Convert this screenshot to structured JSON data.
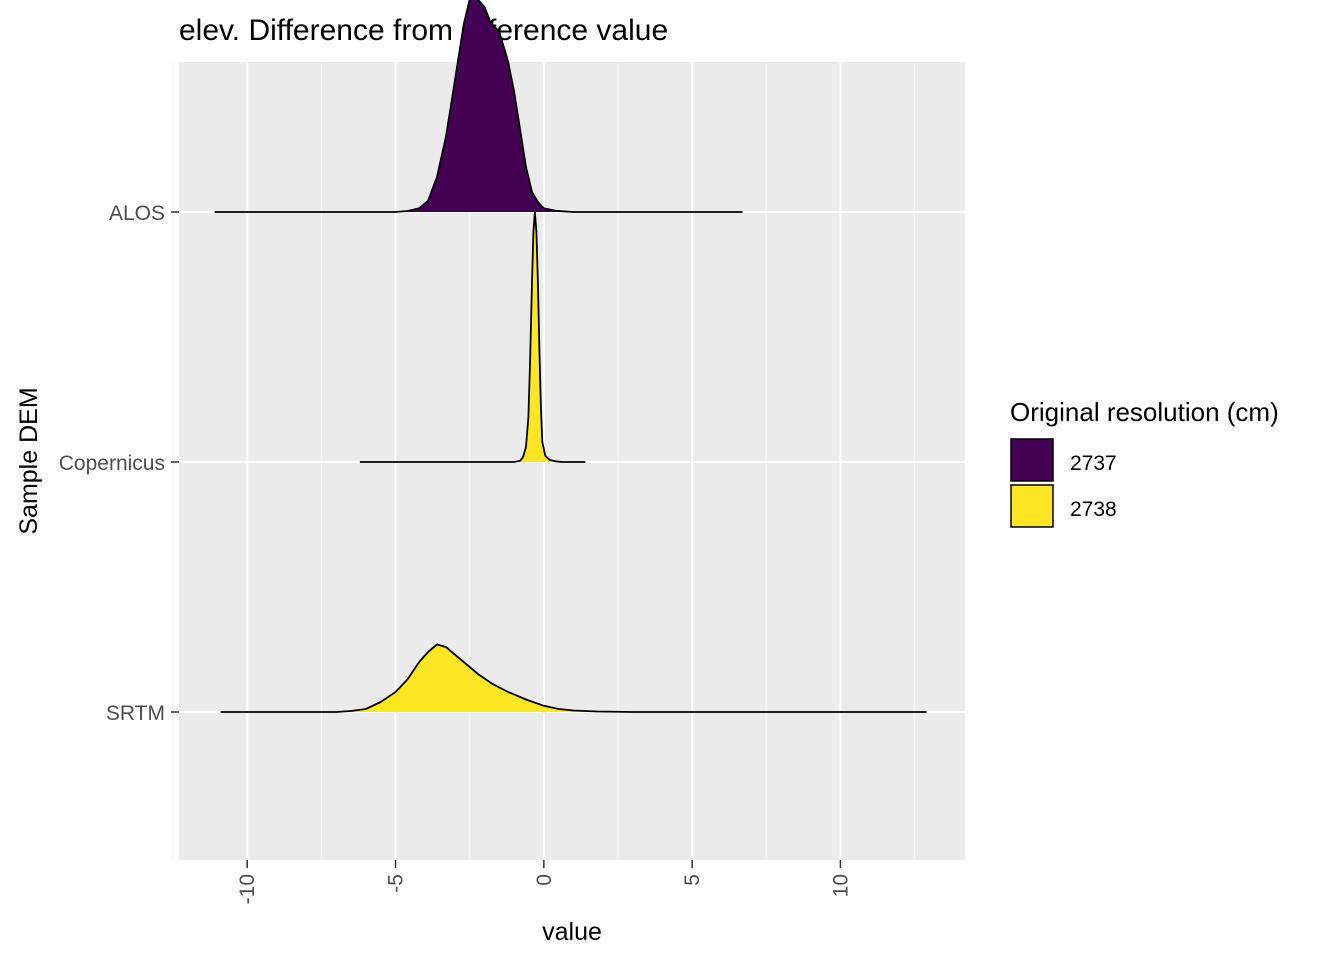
{
  "chart_data": {
    "type": "ridgeline",
    "title": "elev. Difference from reference value",
    "xlabel": "value",
    "ylabel": "Sample DEM",
    "xlim": [
      -12.3,
      14.2
    ],
    "x_ticks": [
      -10,
      -5,
      0,
      5,
      10
    ],
    "x_tick_labels": [
      "-10",
      "-5",
      "0",
      "5",
      "10"
    ],
    "x_minor_ticks": [
      -12.5,
      -7.5,
      -2.5,
      2.5,
      7.5,
      12.5
    ],
    "categories": [
      "ALOS",
      "Copernicus",
      "SRTM"
    ],
    "grid": true,
    "legend": {
      "title": "Original resolution (cm)",
      "position": "right",
      "entries": [
        {
          "label": "2737",
          "color": "#440154"
        },
        {
          "label": "2738",
          "color": "#FDE725"
        }
      ]
    },
    "series": [
      {
        "name": "ALOS",
        "group": "2737",
        "color": "#440154",
        "range": [
          -11.1,
          6.7
        ],
        "density": [
          [
            -11.1,
            0
          ],
          [
            -5.0,
            0
          ],
          [
            -4.6,
            0.004
          ],
          [
            -4.2,
            0.015
          ],
          [
            -3.9,
            0.045
          ],
          [
            -3.6,
            0.14
          ],
          [
            -3.3,
            0.3
          ],
          [
            -3.1,
            0.45
          ],
          [
            -2.9,
            0.6
          ],
          [
            -2.7,
            0.75
          ],
          [
            -2.5,
            0.85
          ],
          [
            -2.3,
            0.86
          ],
          [
            -2.0,
            0.82
          ],
          [
            -1.8,
            0.76
          ],
          [
            -1.5,
            0.72
          ],
          [
            -1.2,
            0.6
          ],
          [
            -1.0,
            0.48
          ],
          [
            -0.8,
            0.33
          ],
          [
            -0.6,
            0.18
          ],
          [
            -0.4,
            0.08
          ],
          [
            -0.2,
            0.04
          ],
          [
            0.0,
            0.015
          ],
          [
            0.4,
            0.005
          ],
          [
            1.0,
            0
          ],
          [
            6.7,
            0
          ]
        ]
      },
      {
        "name": "Copernicus",
        "group": "2738",
        "color": "#FDE725",
        "range": [
          -6.2,
          1.4
        ],
        "density": [
          [
            -6.2,
            0
          ],
          [
            -1.0,
            0
          ],
          [
            -0.8,
            0.005
          ],
          [
            -0.7,
            0.02
          ],
          [
            -0.6,
            0.06
          ],
          [
            -0.52,
            0.18
          ],
          [
            -0.46,
            0.42
          ],
          [
            -0.4,
            0.72
          ],
          [
            -0.35,
            0.92
          ],
          [
            -0.3,
            1.0
          ],
          [
            -0.25,
            0.92
          ],
          [
            -0.2,
            0.72
          ],
          [
            -0.15,
            0.45
          ],
          [
            -0.1,
            0.22
          ],
          [
            -0.05,
            0.08
          ],
          [
            0.05,
            0.025
          ],
          [
            0.2,
            0.008
          ],
          [
            0.4,
            0.003
          ],
          [
            0.6,
            0
          ],
          [
            1.4,
            0
          ]
        ]
      },
      {
        "name": "SRTM",
        "group": "2738",
        "color": "#FDE725",
        "range": [
          -10.9,
          12.9
        ],
        "density": [
          [
            -10.9,
            0
          ],
          [
            -7.0,
            0
          ],
          [
            -6.5,
            0.004
          ],
          [
            -6.0,
            0.012
          ],
          [
            -5.5,
            0.04
          ],
          [
            -5.0,
            0.08
          ],
          [
            -4.6,
            0.13
          ],
          [
            -4.2,
            0.2
          ],
          [
            -3.9,
            0.24
          ],
          [
            -3.6,
            0.27
          ],
          [
            -3.3,
            0.26
          ],
          [
            -3.0,
            0.23
          ],
          [
            -2.6,
            0.19
          ],
          [
            -2.2,
            0.15
          ],
          [
            -1.7,
            0.11
          ],
          [
            -1.2,
            0.08
          ],
          [
            -0.6,
            0.05
          ],
          [
            0.0,
            0.025
          ],
          [
            0.5,
            0.012
          ],
          [
            1.0,
            0.006
          ],
          [
            1.8,
            0.002
          ],
          [
            3.0,
            0
          ],
          [
            12.9,
            0
          ]
        ]
      }
    ]
  }
}
